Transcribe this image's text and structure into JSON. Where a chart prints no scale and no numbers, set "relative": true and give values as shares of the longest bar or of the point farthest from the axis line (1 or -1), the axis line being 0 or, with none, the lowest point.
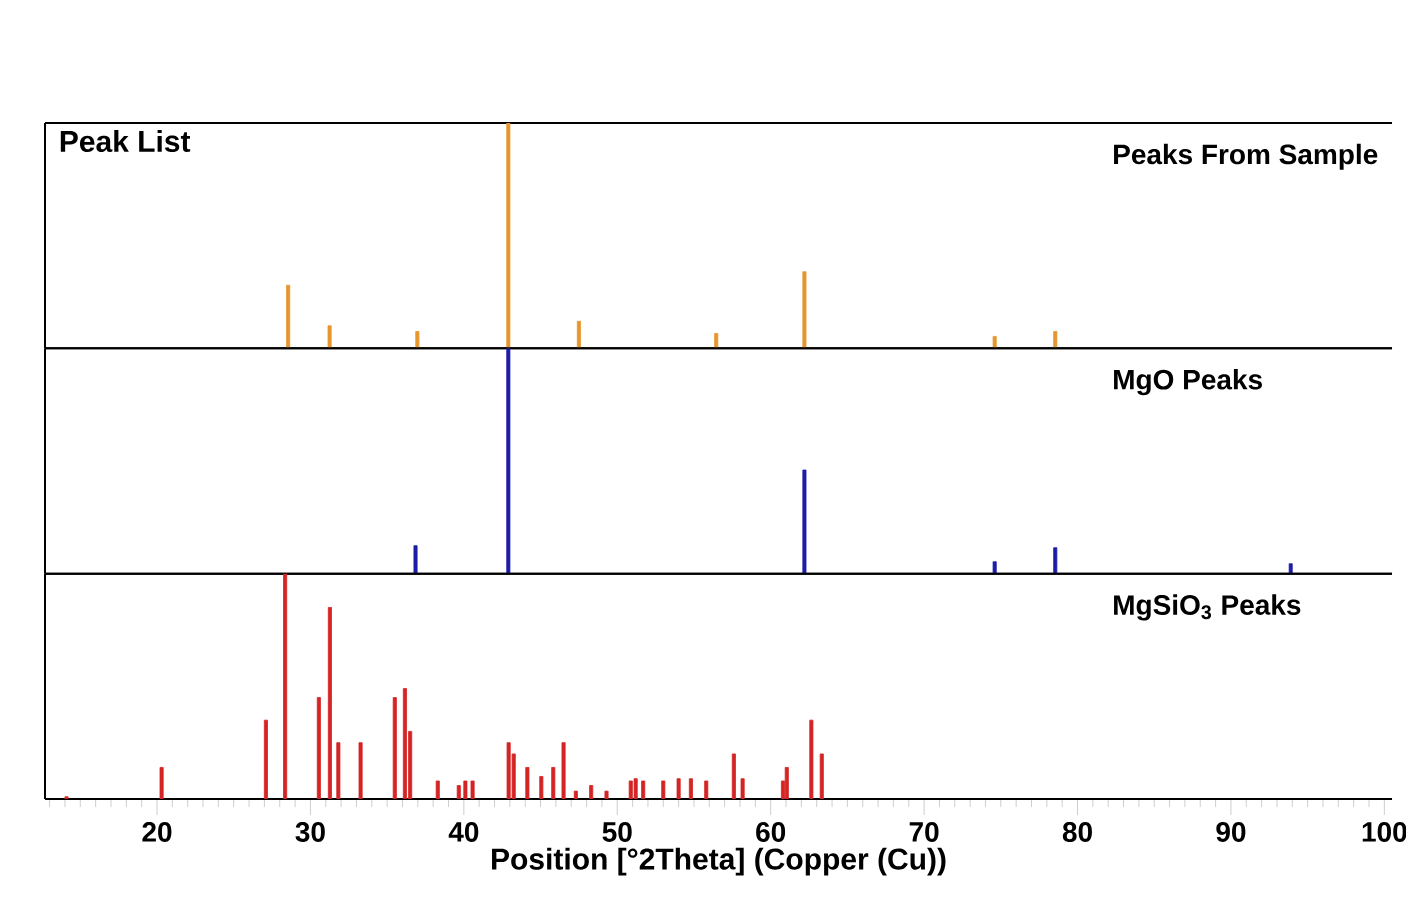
{
  "chart_data": [
    {
      "type": "bar",
      "relative": true,
      "title": "Peak List",
      "annotations": [
        "Peaks From Sample"
      ],
      "xlim": [
        12.7,
        100.5
      ],
      "tick_labels": false,
      "color": "#e6952f",
      "x": [
        28.55,
        31.25,
        36.97,
        42.9,
        47.5,
        56.45,
        62.2,
        74.6,
        78.55
      ],
      "values": [
        0.28,
        0.1,
        0.075,
        1.0,
        0.12,
        0.066,
        0.34,
        0.053,
        0.075
      ]
    },
    {
      "type": "bar",
      "relative": true,
      "annotations": [
        "MgO Peaks"
      ],
      "xlim": [
        12.7,
        100.5
      ],
      "tick_labels": false,
      "color": "#1c1ca8",
      "x": [
        36.85,
        42.9,
        62.2,
        74.6,
        78.55,
        93.9
      ],
      "values": [
        0.124,
        1.0,
        0.46,
        0.053,
        0.115,
        0.044
      ]
    },
    {
      "type": "bar",
      "relative": true,
      "annotations": [
        "MgSiO$_{3}$ Peaks"
      ],
      "xlabel": "Position [°2Theta] (Copper (Cu))",
      "xlim": [
        12.7,
        100.5
      ],
      "xticks": [
        {
          "value": 20,
          "label": "20"
        },
        {
          "value": 30,
          "label": "30"
        },
        {
          "value": 40,
          "label": "40"
        },
        {
          "value": 50,
          "label": "50"
        },
        {
          "value": 60,
          "label": "60"
        },
        {
          "value": 70,
          "label": "70"
        },
        {
          "value": 80,
          "label": "80"
        },
        {
          "value": 90,
          "label": "90"
        },
        {
          "value": 100,
          "label": "100"
        }
      ],
      "tick_labels": "x",
      "color": "#d42424",
      "x": [
        14.1,
        20.3,
        27.1,
        28.35,
        30.55,
        31.27,
        31.82,
        33.27,
        35.5,
        36.16,
        36.5,
        38.3,
        39.67,
        40.1,
        40.57,
        42.92,
        43.25,
        44.14,
        45.05,
        45.83,
        46.5,
        47.3,
        48.3,
        49.3,
        50.88,
        51.2,
        51.69,
        53.0,
        54.0,
        54.8,
        55.8,
        57.6,
        58.17,
        60.8,
        61.05,
        62.65,
        63.33
      ],
      "values": [
        0.01,
        0.14,
        0.35,
        1.0,
        0.45,
        0.85,
        0.25,
        0.25,
        0.45,
        0.49,
        0.3,
        0.08,
        0.06,
        0.08,
        0.08,
        0.25,
        0.2,
        0.14,
        0.1,
        0.14,
        0.25,
        0.035,
        0.06,
        0.035,
        0.08,
        0.09,
        0.08,
        0.08,
        0.09,
        0.09,
        0.08,
        0.2,
        0.09,
        0.08,
        0.14,
        0.35,
        0.2
      ]
    }
  ]
}
